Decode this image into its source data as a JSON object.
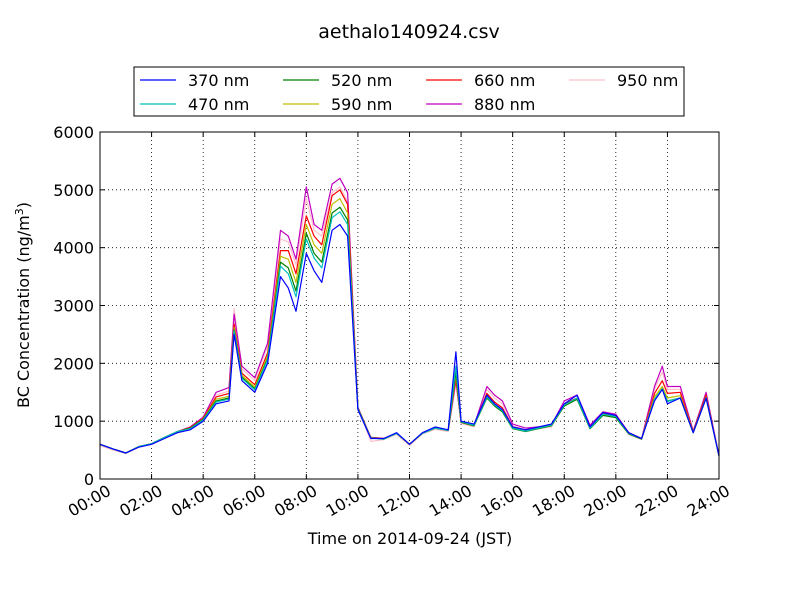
{
  "chart_data": {
    "type": "line",
    "title": "aethalo140924.csv",
    "xlabel": "Time on 2014-09-24 (JST)",
    "ylabel_main": "BC Concentration (ng/m",
    "ylabel_sup": "3",
    "ylabel_close": ")",
    "xlim": [
      "00:00",
      "24:00"
    ],
    "ylim": [
      0,
      6000
    ],
    "x_ticks": [
      "00:00",
      "02:00",
      "04:00",
      "06:00",
      "08:00",
      "10:00",
      "12:00",
      "14:00",
      "16:00",
      "18:00",
      "20:00",
      "22:00",
      "24:00"
    ],
    "y_ticks": [
      "0",
      "1000",
      "2000",
      "3000",
      "4000",
      "5000",
      "6000"
    ],
    "grid": true,
    "legend_position": "top",
    "colors": {
      "370 nm": "#0000ff",
      "470 nm": "#00bfbf",
      "520 nm": "#008000",
      "590 nm": "#bfbf00",
      "660 nm": "#ff0000",
      "880 nm": "#bf00bf",
      "950 nm": "#ffc0cb"
    },
    "x_hours": [
      0,
      0.5,
      1,
      1.5,
      2,
      2.5,
      3,
      3.5,
      4,
      4.5,
      5,
      5.2,
      5.5,
      6,
      6.5,
      7,
      7.3,
      7.6,
      8,
      8.3,
      8.6,
      9,
      9.3,
      9.6,
      10,
      10.5,
      11,
      11.5,
      12,
      12.5,
      13,
      13.5,
      13.8,
      14,
      14.5,
      15,
      15.3,
      15.6,
      16,
      16.5,
      17,
      17.5,
      18,
      18.5,
      19,
      19.5,
      20,
      20.5,
      21,
      21.5,
      21.8,
      22,
      22.5,
      23,
      23.5,
      24
    ],
    "series": [
      {
        "name": "370 nm",
        "values": [
          600,
          520,
          450,
          550,
          600,
          700,
          800,
          850,
          1000,
          1300,
          1350,
          2500,
          1700,
          1500,
          2000,
          3500,
          3300,
          2900,
          3900,
          3600,
          3400,
          4300,
          4400,
          4200,
          1200,
          700,
          700,
          800,
          600,
          800,
          900,
          850,
          2200,
          1000,
          950,
          1450,
          1300,
          1200,
          900,
          850,
          900,
          950,
          1300,
          1450,
          900,
          1150,
          1100,
          800,
          700,
          1350,
          1550,
          1300,
          1400,
          800,
          1400,
          400
        ]
      },
      {
        "name": "470 nm",
        "values": [
          600,
          520,
          450,
          560,
          610,
          720,
          820,
          870,
          1020,
          1330,
          1380,
          2560,
          1740,
          1540,
          2060,
          3680,
          3550,
          3150,
          4150,
          3820,
          3650,
          4520,
          4620,
          4400,
          1210,
          710,
          690,
          790,
          600,
          790,
          880,
          840,
          1950,
          990,
          930,
          1420,
          1280,
          1180,
          880,
          830,
          880,
          930,
          1280,
          1400,
          880,
          1120,
          1080,
          790,
          700,
          1380,
          1560,
          1340,
          1400,
          800,
          1400,
          400
        ]
      },
      {
        "name": "520 nm",
        "values": [
          600,
          520,
          450,
          560,
          610,
          720,
          820,
          880,
          1030,
          1350,
          1400,
          2580,
          1760,
          1560,
          2080,
          3750,
          3650,
          3250,
          4250,
          3900,
          3750,
          4600,
          4700,
          4480,
          1220,
          710,
          690,
          790,
          600,
          790,
          880,
          840,
          1850,
          980,
          920,
          1400,
          1260,
          1160,
          870,
          820,
          870,
          920,
          1260,
          1380,
          870,
          1100,
          1060,
          780,
          690,
          1380,
          1560,
          1350,
          1400,
          800,
          1400,
          400
        ]
      },
      {
        "name": "590 nm",
        "values": [
          600,
          520,
          450,
          560,
          610,
          720,
          820,
          880,
          1040,
          1380,
          1430,
          2620,
          1790,
          1590,
          2120,
          3850,
          3800,
          3400,
          4400,
          4050,
          3900,
          4750,
          4850,
          4600,
          1220,
          710,
          690,
          790,
          600,
          790,
          880,
          840,
          1800,
          980,
          920,
          1420,
          1280,
          1180,
          880,
          830,
          880,
          920,
          1270,
          1380,
          880,
          1110,
          1080,
          790,
          700,
          1420,
          1600,
          1400,
          1440,
          810,
          1420,
          400
        ]
      },
      {
        "name": "660 nm",
        "values": [
          600,
          520,
          450,
          560,
          610,
          720,
          820,
          890,
          1050,
          1420,
          1480,
          2680,
          1830,
          1630,
          2180,
          3950,
          3950,
          3550,
          4550,
          4200,
          4050,
          4900,
          5000,
          4750,
          1230,
          720,
          700,
          790,
          600,
          790,
          880,
          840,
          1750,
          980,
          920,
          1480,
          1330,
          1230,
          900,
          850,
          890,
          930,
          1300,
          1400,
          900,
          1130,
          1100,
          800,
          700,
          1480,
          1700,
          1480,
          1500,
          820,
          1450,
          400
        ]
      },
      {
        "name": "880 nm",
        "values": [
          600,
          520,
          450,
          560,
          610,
          720,
          820,
          900,
          1070,
          1500,
          1580,
          2850,
          1950,
          1750,
          2350,
          4300,
          4200,
          3800,
          5050,
          4400,
          4300,
          5100,
          5200,
          4950,
          1240,
          720,
          700,
          790,
          600,
          790,
          880,
          840,
          1700,
          980,
          920,
          1600,
          1450,
          1350,
          950,
          880,
          900,
          930,
          1350,
          1450,
          930,
          1160,
          1120,
          800,
          700,
          1600,
          1950,
          1600,
          1600,
          830,
          1500,
          400
        ]
      },
      {
        "name": "950 nm",
        "values": [
          580,
          500,
          440,
          550,
          600,
          700,
          800,
          880,
          1050,
          1450,
          1520,
          2950,
          1900,
          1700,
          2300,
          4150,
          4100,
          3700,
          4850,
          4300,
          4200,
          4950,
          5050,
          4800,
          1250,
          650,
          680,
          770,
          580,
          780,
          860,
          820,
          1650,
          960,
          900,
          1550,
          1400,
          1300,
          920,
          850,
          870,
          900,
          1300,
          1400,
          900,
          1120,
          1080,
          770,
          680,
          1550,
          1850,
          1550,
          1550,
          800,
          1450,
          380
        ]
      }
    ]
  }
}
